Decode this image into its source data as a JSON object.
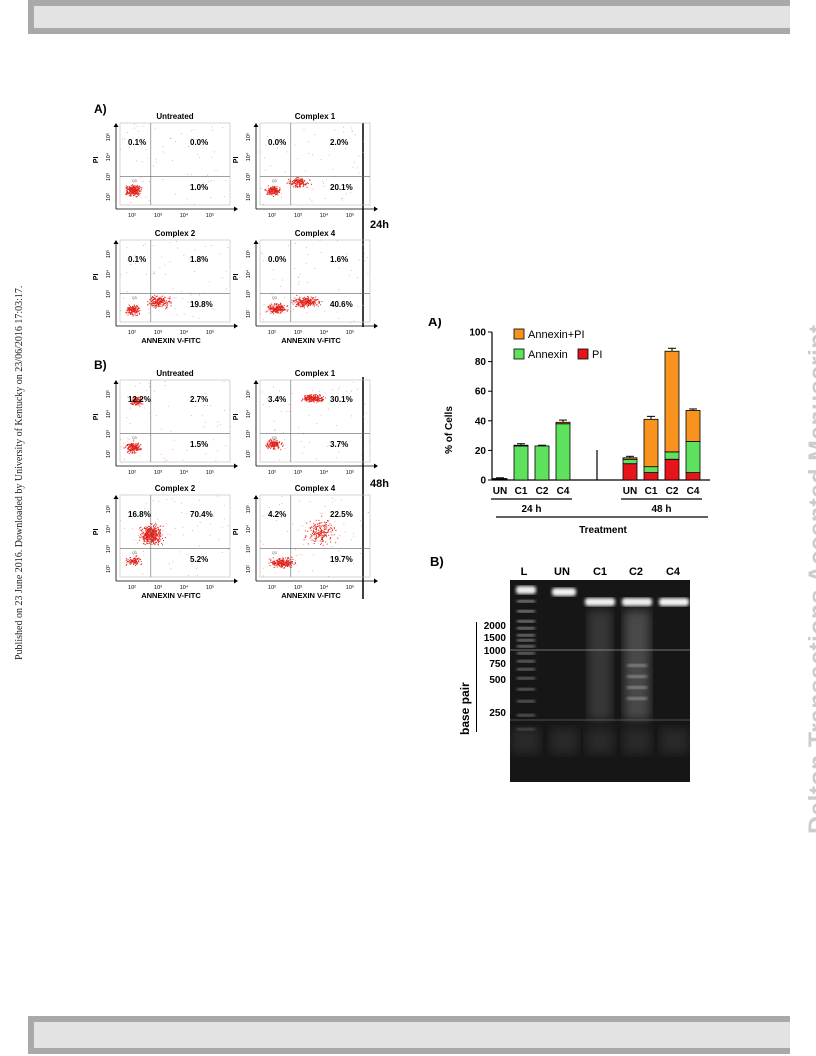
{
  "header": {},
  "side_text": "Published on 23 June 2016. Downloaded by University of Kentucky on 23/06/2016 17:03:17.",
  "watermark": "Dalton Transactions Accepted Manuscript",
  "flow": {
    "panelA_label": "A)",
    "panelB_label": "B)",
    "label_24h": "24h",
    "label_48h": "48h",
    "xlabel": "ANNEXIN V-FITC",
    "ylabel": "PI",
    "ticks": [
      "10²",
      "10³",
      "10⁴",
      "10⁵"
    ],
    "gate_tag": "Q3",
    "plots": [
      {
        "title": "Untreated",
        "q1": "0.1%",
        "q2": "0.0%",
        "q4": "1.0%"
      },
      {
        "title": "Complex 1",
        "q1": "0.0%",
        "q2": "2.0%",
        "q4": "20.1%"
      },
      {
        "title": "Complex 2",
        "q1": "0.1%",
        "q2": "1.8%",
        "q4": "19.8%"
      },
      {
        "title": "Complex 4",
        "q1": "0.0%",
        "q2": "1.6%",
        "q4": "40.6%"
      },
      {
        "title": "Untreated",
        "q1": "12.2%",
        "q2": "2.7%",
        "q4": "1.5%"
      },
      {
        "title": "Complex 1",
        "q1": "3.4%",
        "q2": "30.1%",
        "q4": "3.7%"
      },
      {
        "title": "Complex 2",
        "q1": "16.8%",
        "q2": "70.4%",
        "q4": "5.2%"
      },
      {
        "title": "Complex 4",
        "q1": "4.2%",
        "q2": "22.5%",
        "q4": "19.7%"
      }
    ]
  },
  "chart_data": {
    "type": "bar",
    "panel_label": "A)",
    "ylabel": "% of Cells",
    "xlabel": "Treatment",
    "ylim": [
      0,
      100
    ],
    "yticks": [
      0,
      20,
      40,
      60,
      80,
      100
    ],
    "categories": [
      "UN",
      "C1",
      "C2",
      "C4",
      "UN",
      "C1",
      "C2",
      "C4"
    ],
    "groups": [
      {
        "label": "24 h",
        "from": 0,
        "to": 3
      },
      {
        "label": "48 h",
        "from": 4,
        "to": 7
      }
    ],
    "series": [
      {
        "name": "PI",
        "color": "#e8141c",
        "values": [
          0.5,
          0,
          0,
          0,
          11,
          5,
          14,
          5
        ]
      },
      {
        "name": "Annexin",
        "color": "#5ee25e",
        "values": [
          0.5,
          23,
          23,
          38,
          3,
          4,
          5,
          21
        ]
      },
      {
        "name": "Annexin+PI",
        "color": "#f7931e",
        "values": [
          0,
          0.5,
          0,
          1,
          1,
          32,
          68,
          21
        ]
      }
    ],
    "error_bars": [
      0.5,
      1,
      0.5,
      1.5,
      1,
      2,
      2,
      1
    ],
    "legend": [
      "Annexin+PI",
      "Annexin",
      "PI"
    ]
  },
  "gel": {
    "panel_label": "B)",
    "lanes": [
      "L",
      "UN",
      "C1",
      "C2",
      "C4"
    ],
    "ylabel": "base pair",
    "markers": [
      "2000",
      "1500",
      "1000",
      "750",
      "500",
      "250"
    ]
  }
}
